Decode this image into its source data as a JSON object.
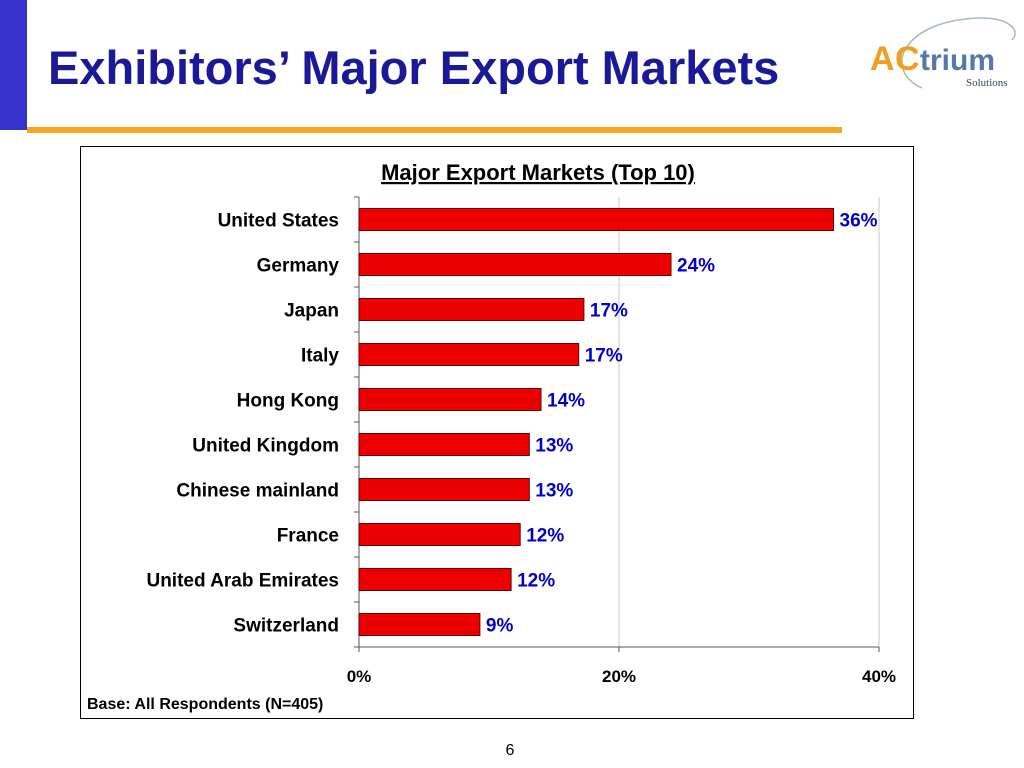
{
  "slide": {
    "title": "Exhibitors’ Major Export Markets",
    "page_number": "6",
    "logo": {
      "brand": "ACtrium",
      "tagline": "Solutions"
    }
  },
  "colors": {
    "title": "#1a1a99",
    "accent_bar": "#3333cc",
    "underline": "#f5a623",
    "bar_fill": "#ee0000",
    "value_label": "#0000cc"
  },
  "chart_data": {
    "type": "bar",
    "orientation": "horizontal",
    "title": "Major Export Markets (Top 10)",
    "categories": [
      "United States",
      "Germany",
      "Japan",
      "Italy",
      "Hong Kong",
      "United Kingdom",
      "Chinese mainland",
      "France",
      "United Arab Emirates",
      "Switzerland"
    ],
    "values": [
      36.5,
      24,
      17.3,
      16.9,
      14,
      13.1,
      13.1,
      12.4,
      11.7,
      9.3
    ],
    "value_labels": [
      "36%",
      "24%",
      "17%",
      "17%",
      "14%",
      "13%",
      "13%",
      "12%",
      "12%",
      "9%"
    ],
    "xlim": [
      0,
      40
    ],
    "xticks": [
      0,
      20,
      40
    ],
    "xtick_labels": [
      "0%",
      "20%",
      "40%"
    ],
    "grid": true,
    "footnote": "Base: All Respondents (N=405)"
  }
}
